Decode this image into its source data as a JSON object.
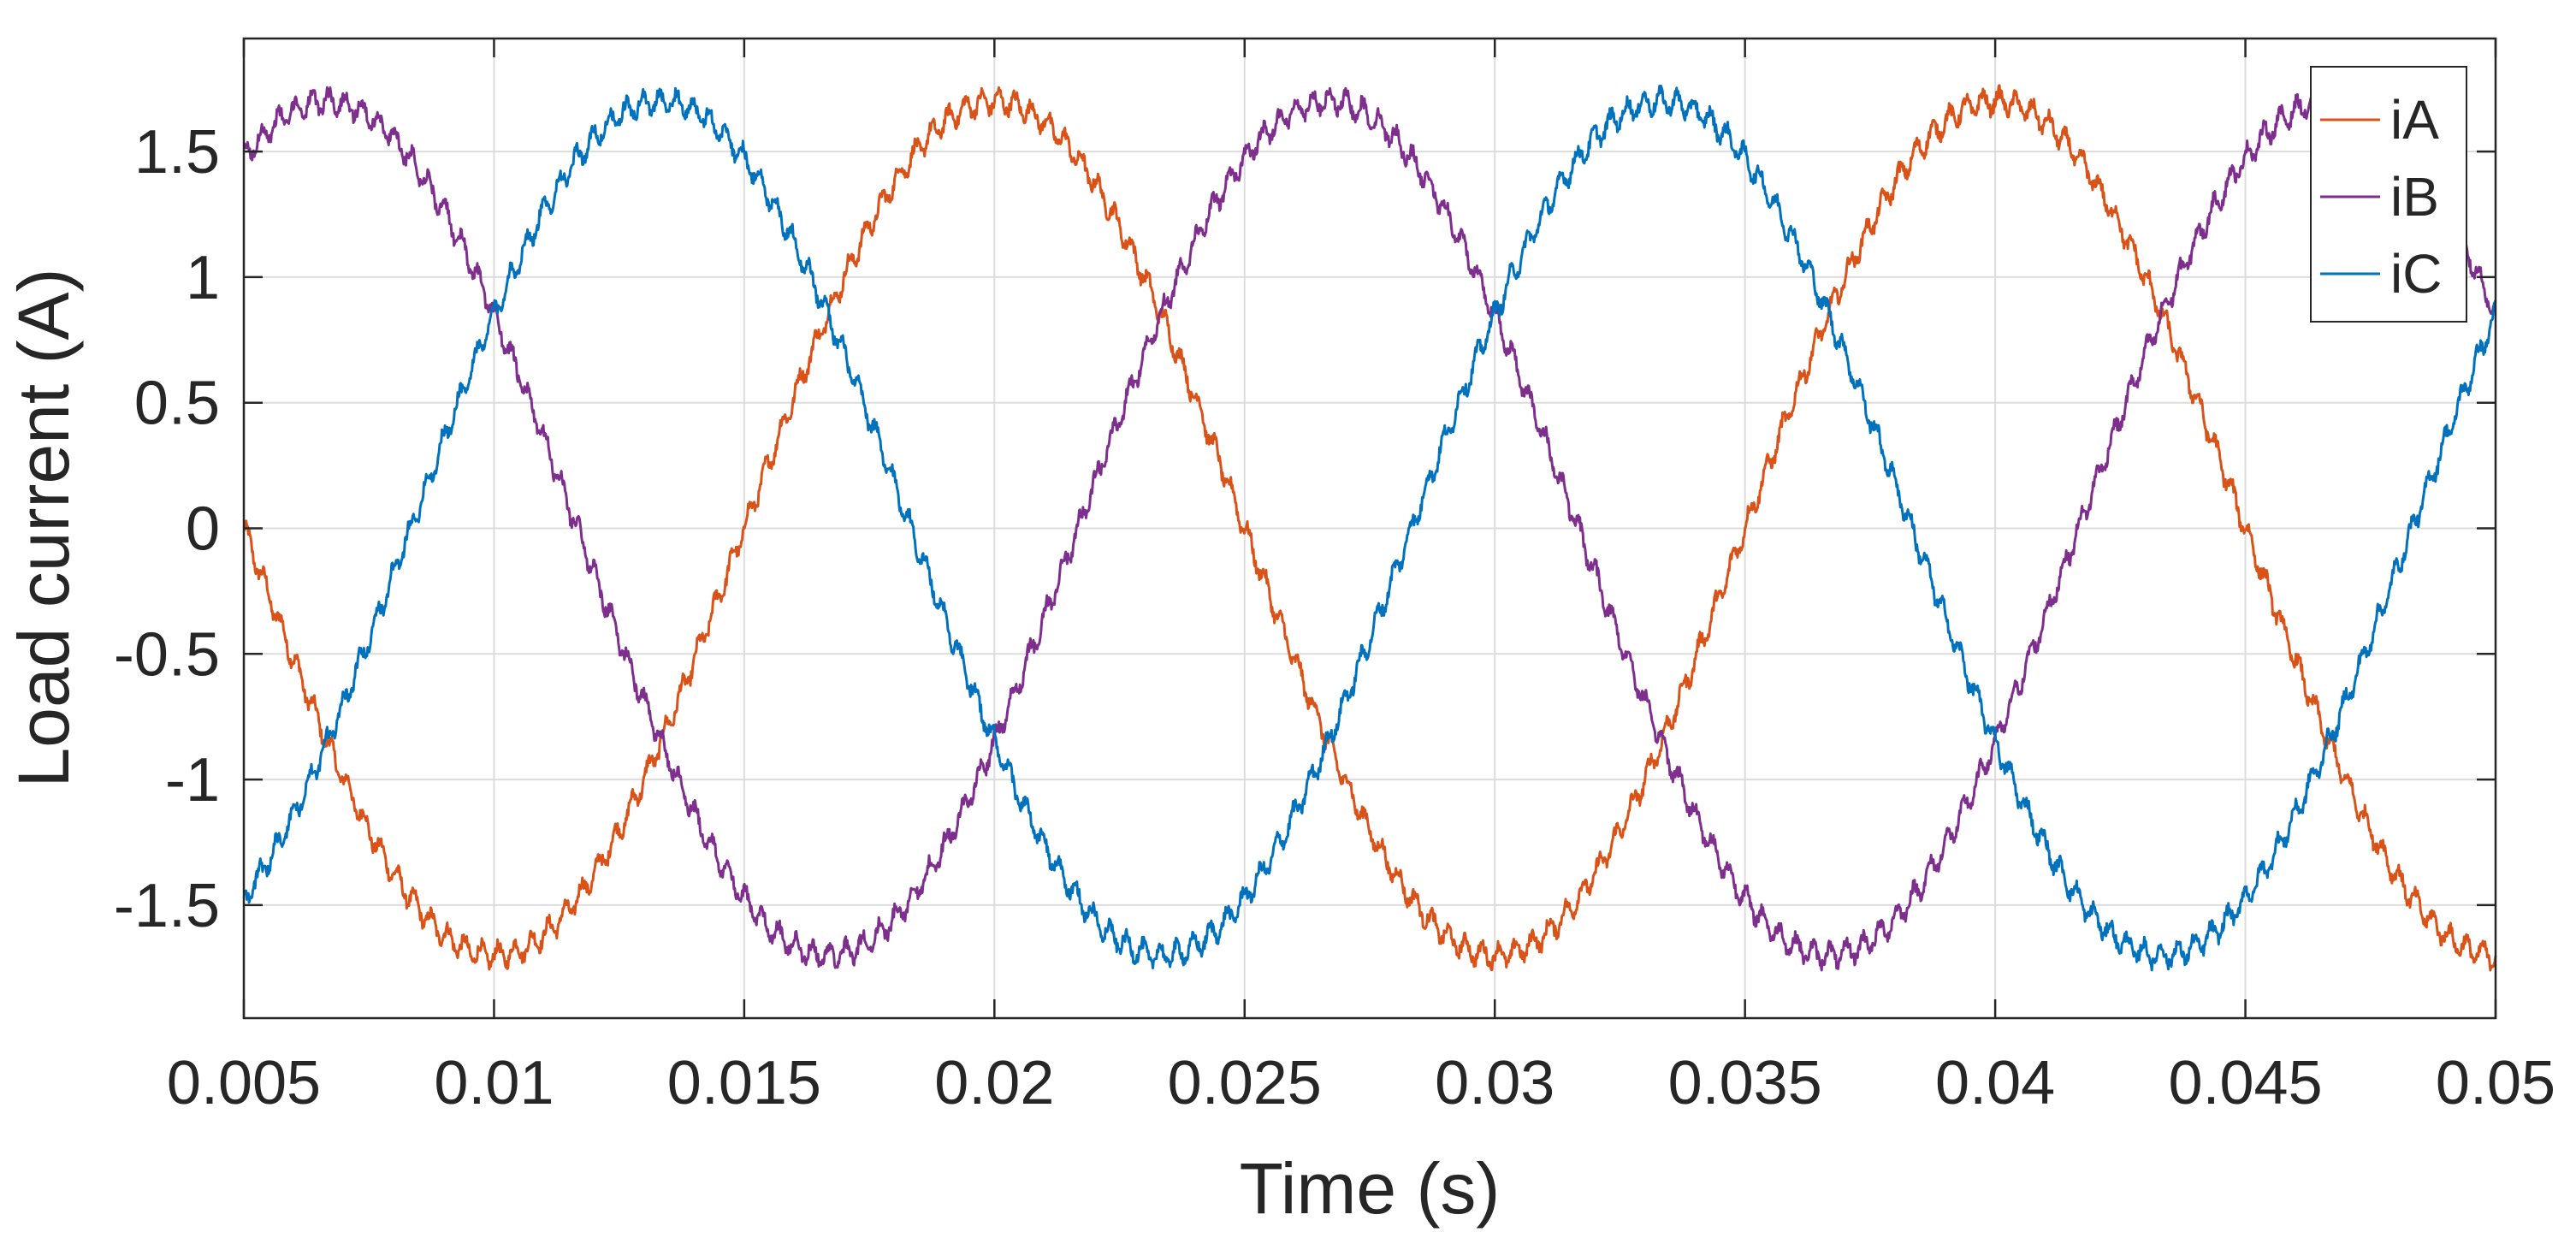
{
  "chart_data": {
    "type": "line",
    "xlabel": "Time (s)",
    "ylabel": "Load current (A)",
    "xlim": [
      0.005,
      0.05
    ],
    "ylim": [
      -1.95,
      1.95
    ],
    "xticks": [
      0.005,
      0.01,
      0.015,
      0.02,
      0.025,
      0.03,
      0.035,
      0.04,
      0.045,
      0.05
    ],
    "xtick_labels": [
      "0.005",
      "0.01",
      "0.015",
      "0.02",
      "0.025",
      "0.03",
      "0.035",
      "0.04",
      "0.045",
      "0.05"
    ],
    "yticks": [
      1.5,
      1,
      0.5,
      0,
      -0.5,
      -1,
      -1.5
    ],
    "ytick_labels": [
      "1.5",
      "1",
      "0.5",
      "0",
      "-0.5",
      "-1",
      "-1.5"
    ],
    "grid": true,
    "legend_position": "top-right",
    "waveform": {
      "amplitude": 1.7,
      "frequency_hz": 50,
      "ripple_amplitude": 0.04
    },
    "series": [
      {
        "name": "iA",
        "color": "#D95319",
        "phase_deg": 0
      },
      {
        "name": "iB",
        "color": "#7E2F8E",
        "phase_deg": -120
      },
      {
        "name": "iC",
        "color": "#0072BD",
        "phase_deg": 120
      }
    ]
  }
}
